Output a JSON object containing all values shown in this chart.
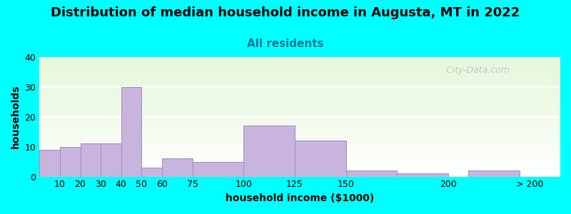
{
  "title": "Distribution of median household income in Augusta, MT in 2022",
  "subtitle": "All residents",
  "xlabel": "household income ($1000)",
  "ylabel": "households",
  "bar_labels": [
    "10",
    "20",
    "30",
    "40",
    "50",
    "60",
    "75",
    "100",
    "125",
    "150",
    "200",
    "> 200"
  ],
  "bar_heights": [
    9,
    10,
    11,
    11,
    30,
    3,
    6,
    5,
    17,
    12,
    2,
    1,
    2
  ],
  "bar_lefts": [
    0,
    10,
    20,
    30,
    40,
    50,
    60,
    75,
    100,
    125,
    150,
    175,
    210
  ],
  "bar_widths": [
    10,
    10,
    10,
    10,
    10,
    10,
    15,
    25,
    25,
    25,
    25,
    25,
    25
  ],
  "tick_positions": [
    10,
    20,
    30,
    40,
    50,
    60,
    75,
    100,
    125,
    150,
    200,
    240
  ],
  "bar_color": "#c8b4dc",
  "bar_edge_color": "#a090c0",
  "background_color": "#00ffff",
  "ylim": [
    0,
    40
  ],
  "xlim": [
    0,
    255
  ],
  "yticks": [
    0,
    10,
    20,
    30,
    40
  ],
  "title_fontsize": 13,
  "subtitle_fontsize": 11,
  "axis_label_fontsize": 10,
  "watermark": "  City-Data.com"
}
